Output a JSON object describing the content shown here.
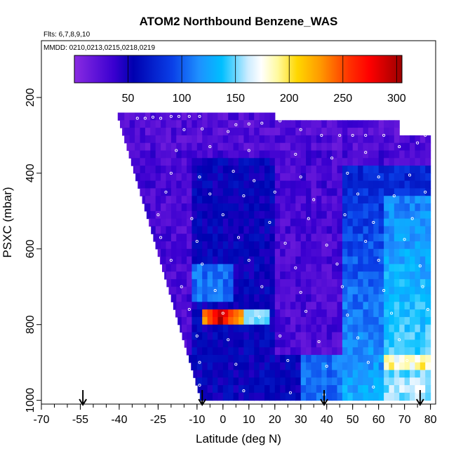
{
  "chart_data": {
    "type": "heatmap",
    "title": "ATOM2 Northbound Benzene_WAS",
    "flights_note": "Flts: 6,7,8,9,10",
    "dates_note": "MMDD: 0210,0213,0215,0218,0219",
    "xlabel": "Latitude (deg N)",
    "ylabel": "PSXC (mbar)",
    "xlim": [
      -70,
      82
    ],
    "ylim": [
      1010,
      50
    ],
    "x_ticks_major": [
      -70,
      -55,
      -40,
      -25,
      -10,
      0,
      10,
      20,
      30,
      40,
      50,
      60,
      70,
      80
    ],
    "x_tick_labels": [
      "-70",
      "-55",
      "-40",
      "-25",
      "-10",
      "0",
      "10",
      "20",
      "30",
      "40",
      "50",
      "60",
      "70",
      "80"
    ],
    "y_ticks": [
      200,
      400,
      600,
      800,
      1000
    ],
    "y_tick_labels": [
      "200",
      "400",
      "600",
      "800",
      "1000"
    ],
    "colorbar": {
      "range": [
        0,
        305
      ],
      "ticks": [
        50,
        100,
        150,
        200,
        250,
        300
      ],
      "tick_labels": [
        "50",
        "100",
        "150",
        "200",
        "250",
        "300"
      ],
      "colors": [
        "#8a2be2",
        "#0000cd",
        "#1e90ff",
        "#00bfff",
        "#ffffff",
        "#ffd700",
        "#ff8c00",
        "#ff0000",
        "#a00000"
      ]
    },
    "arrows_at_latitude": [
      -54,
      -8,
      39,
      76
    ],
    "sample_points": [
      {
        "lat": -33,
        "p": 255
      },
      {
        "lat": -30,
        "p": 255
      },
      {
        "lat": -27,
        "p": 252
      },
      {
        "lat": -24,
        "p": 255
      },
      {
        "lat": -20,
        "p": 250
      },
      {
        "lat": -17,
        "p": 250
      },
      {
        "lat": -13,
        "p": 250
      },
      {
        "lat": -9,
        "p": 250
      },
      {
        "lat": 5,
        "p": 272
      },
      {
        "lat": 10,
        "p": 270
      },
      {
        "lat": 15,
        "p": 268
      },
      {
        "lat": 22,
        "p": 262
      },
      {
        "lat": -15,
        "p": 285
      },
      {
        "lat": -8,
        "p": 283
      },
      {
        "lat": 2,
        "p": 290
      },
      {
        "lat": 30,
        "p": 285
      },
      {
        "lat": 38,
        "p": 300
      },
      {
        "lat": 45,
        "p": 300
      },
      {
        "lat": 50,
        "p": 300
      },
      {
        "lat": 55,
        "p": 300
      },
      {
        "lat": 62,
        "p": 300
      },
      {
        "lat": 70,
        "p": 295
      },
      {
        "lat": 78,
        "p": 300
      },
      {
        "lat": -18,
        "p": 340
      },
      {
        "lat": -5,
        "p": 330
      },
      {
        "lat": 10,
        "p": 340
      },
      {
        "lat": 28,
        "p": 350
      },
      {
        "lat": 42,
        "p": 360
      },
      {
        "lat": 55,
        "p": 345
      },
      {
        "lat": 68,
        "p": 330
      },
      {
        "lat": 75,
        "p": 320
      },
      {
        "lat": -20,
        "p": 400
      },
      {
        "lat": -9,
        "p": 410
      },
      {
        "lat": 4,
        "p": 395
      },
      {
        "lat": 12,
        "p": 420
      },
      {
        "lat": 30,
        "p": 410
      },
      {
        "lat": 48,
        "p": 400
      },
      {
        "lat": 60,
        "p": 410
      },
      {
        "lat": 72,
        "p": 405
      },
      {
        "lat": -22,
        "p": 450
      },
      {
        "lat": -5,
        "p": 455
      },
      {
        "lat": 8,
        "p": 460
      },
      {
        "lat": 20,
        "p": 450
      },
      {
        "lat": 35,
        "p": 470
      },
      {
        "lat": 52,
        "p": 455
      },
      {
        "lat": 66,
        "p": 460
      },
      {
        "lat": 78,
        "p": 450
      },
      {
        "lat": -25,
        "p": 510
      },
      {
        "lat": -12,
        "p": 520
      },
      {
        "lat": 0,
        "p": 510
      },
      {
        "lat": 18,
        "p": 530
      },
      {
        "lat": 33,
        "p": 520
      },
      {
        "lat": 47,
        "p": 510
      },
      {
        "lat": 58,
        "p": 530
      },
      {
        "lat": 73,
        "p": 520
      },
      {
        "lat": -24,
        "p": 570
      },
      {
        "lat": -10,
        "p": 580
      },
      {
        "lat": 6,
        "p": 570
      },
      {
        "lat": 24,
        "p": 585
      },
      {
        "lat": 40,
        "p": 590
      },
      {
        "lat": 55,
        "p": 580
      },
      {
        "lat": 70,
        "p": 575
      },
      {
        "lat": -20,
        "p": 630
      },
      {
        "lat": -8,
        "p": 640
      },
      {
        "lat": 10,
        "p": 630
      },
      {
        "lat": 28,
        "p": 650
      },
      {
        "lat": 44,
        "p": 640
      },
      {
        "lat": 60,
        "p": 630
      },
      {
        "lat": 76,
        "p": 645
      },
      {
        "lat": -16,
        "p": 700
      },
      {
        "lat": -3,
        "p": 710
      },
      {
        "lat": 15,
        "p": 700
      },
      {
        "lat": 30,
        "p": 715
      },
      {
        "lat": 46,
        "p": 700
      },
      {
        "lat": 62,
        "p": 710
      },
      {
        "lat": 77,
        "p": 700
      },
      {
        "lat": -13,
        "p": 760
      },
      {
        "lat": 0,
        "p": 770
      },
      {
        "lat": 14,
        "p": 780
      },
      {
        "lat": 32,
        "p": 765
      },
      {
        "lat": 48,
        "p": 775
      },
      {
        "lat": 65,
        "p": 770
      },
      {
        "lat": 79,
        "p": 760
      },
      {
        "lat": -10,
        "p": 830
      },
      {
        "lat": 2,
        "p": 840
      },
      {
        "lat": 22,
        "p": 830
      },
      {
        "lat": 37,
        "p": 845
      },
      {
        "lat": 52,
        "p": 835
      },
      {
        "lat": 68,
        "p": 840
      },
      {
        "lat": -9,
        "p": 900
      },
      {
        "lat": 5,
        "p": 905
      },
      {
        "lat": 25,
        "p": 895
      },
      {
        "lat": 40,
        "p": 910
      },
      {
        "lat": 56,
        "p": 900
      },
      {
        "lat": 71,
        "p": 895
      },
      {
        "lat": -9,
        "p": 960
      },
      {
        "lat": 8,
        "p": 975
      },
      {
        "lat": 26,
        "p": 980
      },
      {
        "lat": 39,
        "p": 985
      },
      {
        "lat": 58,
        "p": 965
      },
      {
        "lat": 75,
        "p": 980
      }
    ]
  }
}
